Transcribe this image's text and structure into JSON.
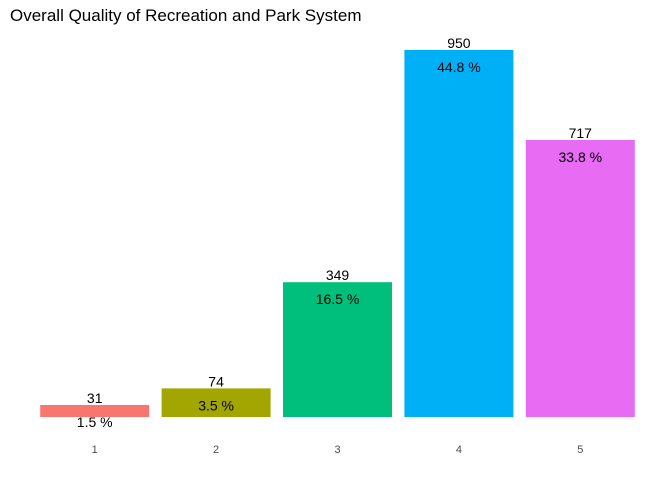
{
  "chart_data": {
    "type": "bar",
    "title": "Overall Quality of Recreation and Park System",
    "xlabel": "",
    "ylabel": "",
    "categories": [
      "1",
      "2",
      "3",
      "4",
      "5"
    ],
    "values": [
      31,
      74,
      349,
      950,
      717
    ],
    "value_labels": [
      "31",
      "74",
      "349",
      "950",
      "717"
    ],
    "percent_labels": [
      "1.5 %",
      "3.5 %",
      "16.5 %",
      "44.8 %",
      "33.8 %"
    ],
    "colors": [
      "#F8766D",
      "#A3A500",
      "#00BF7D",
      "#00B0F6",
      "#E76BF3"
    ],
    "ylim": [
      0,
      950
    ],
    "grid": false,
    "legend": "none"
  }
}
